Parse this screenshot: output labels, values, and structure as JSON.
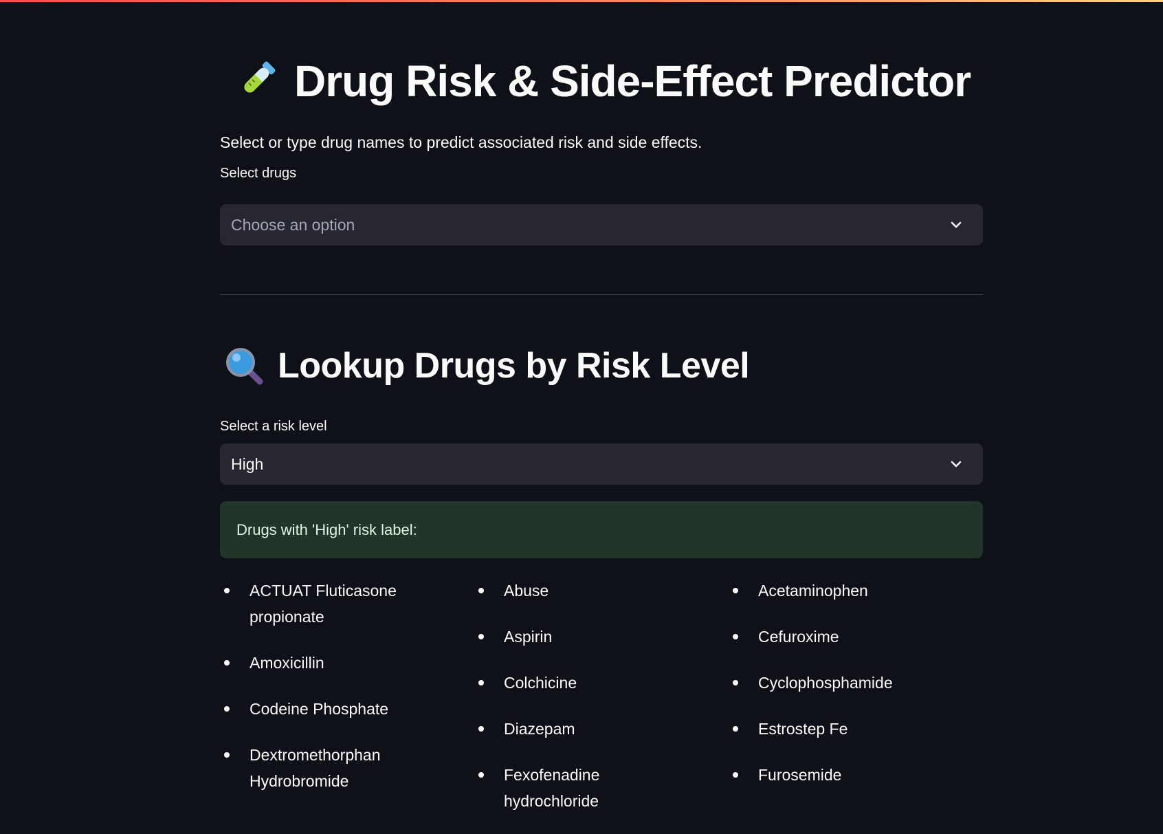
{
  "header": {
    "title": "Drug Risk & Side-Effect Predictor",
    "title_icon": "test-tube-icon",
    "subtitle": "Select or type drug names to predict associated risk and side effects."
  },
  "drug_select": {
    "label": "Select drugs",
    "placeholder": "Choose an option"
  },
  "lookup": {
    "heading": "Lookup Drugs by Risk Level",
    "heading_icon": "magnifying-glass-icon",
    "risk_label": "Select a risk level",
    "risk_value": "High",
    "result_message": "Drugs with 'High' risk label:"
  },
  "drug_columns": [
    [
      "ACTUAT Fluticasone propionate",
      "Amoxicillin",
      "Codeine Phosphate",
      "Dextromethorphan Hydrobromide"
    ],
    [
      "Abuse",
      "Aspirin",
      "Colchicine",
      "Diazepam",
      "Fexofenadine hydrochloride"
    ],
    [
      "Acetaminophen",
      "Cefuroxime",
      "Cyclophosphamide",
      "Estrostep Fe",
      "Furosemide"
    ]
  ],
  "colors": {
    "background": "#0e1117",
    "select_bg": "#262730",
    "success_bg": "#213529",
    "top_bar_start": "#ff4b4b",
    "top_bar_end": "#ffd27a"
  }
}
